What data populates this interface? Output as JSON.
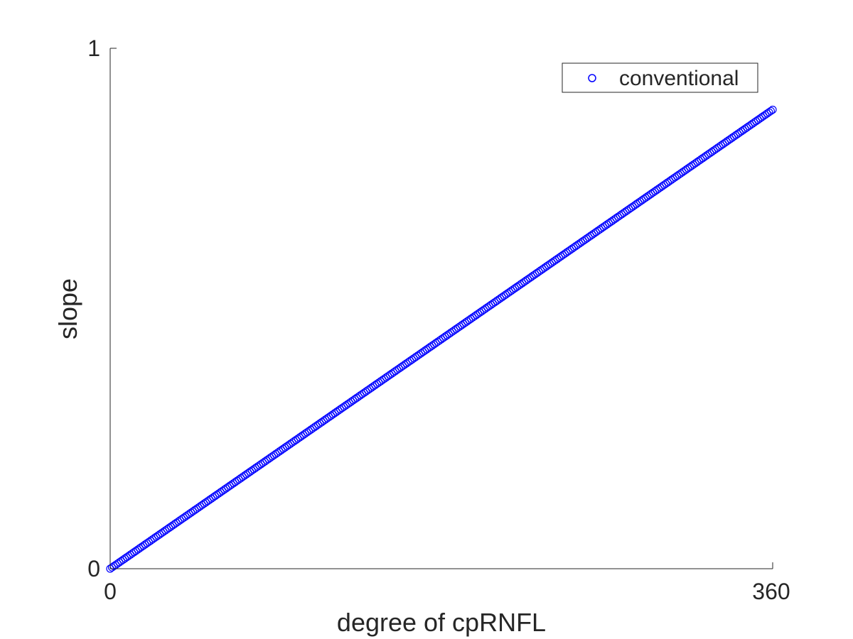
{
  "chart_data": {
    "type": "scatter",
    "title": "",
    "xlabel": "degree of cpRNFL",
    "ylabel": "slope",
    "xlim": [
      0,
      360
    ],
    "ylim": [
      0,
      1
    ],
    "xticks": [
      0,
      360
    ],
    "xtick_labels": [
      "0",
      "360"
    ],
    "yticks": [
      0,
      1
    ],
    "ytick_labels": [
      "0",
      "1"
    ],
    "grid": false,
    "legend_position": "top-right",
    "series": [
      {
        "name": "conventional",
        "color": "#0000ff",
        "marker": "open-circle",
        "x_start": 0,
        "x_end": 360,
        "x_step": 1,
        "y_at_x_start": 0,
        "y_at_x_end": 0.882
      }
    ]
  }
}
